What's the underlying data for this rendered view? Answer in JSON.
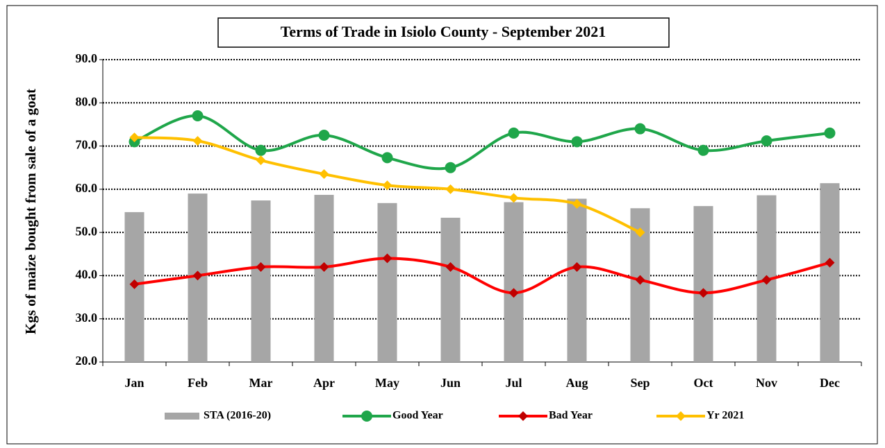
{
  "chart_data": {
    "type": "bar_line",
    "title": "Terms of Trade in Isiolo County - September 2021",
    "y_label": "Kgs of maize bought from sale of a goat",
    "categories": [
      "Jan",
      "Feb",
      "Mar",
      "Apr",
      "May",
      "Jun",
      "Jul",
      "Aug",
      "Sep",
      "Oct",
      "Nov",
      "Dec"
    ],
    "series": [
      {
        "name": "STA (2016-20)",
        "type": "bar",
        "color": "#a6a6a6",
        "values": [
          54.7,
          59,
          57.4,
          58.7,
          56.8,
          53.4,
          57,
          57.8,
          55.6,
          56.1,
          58.6,
          61.4
        ]
      },
      {
        "name": "Good Year",
        "type": "line",
        "marker": "circle",
        "color": "#1fa64a",
        "values": [
          71,
          77,
          69,
          72.5,
          67.3,
          65,
          73,
          71,
          74,
          69,
          71.2,
          73
        ]
      },
      {
        "name": "Bad Year",
        "type": "line",
        "marker": "diamond",
        "color": "#ff0000",
        "values": [
          38,
          40,
          42,
          42,
          44,
          42,
          36,
          42,
          39,
          36,
          39,
          43
        ]
      },
      {
        "name": "Yr 2021",
        "type": "line",
        "marker": "diamond",
        "color": "#ffc000",
        "values": [
          72,
          71.2,
          66.7,
          63.5,
          60.9,
          60,
          58,
          56.6,
          50,
          null,
          null,
          null
        ]
      }
    ],
    "ylim": [
      20,
      90
    ],
    "yticks": [
      {
        "value": 20,
        "label": "20.0"
      },
      {
        "value": 30,
        "label": "30.0"
      },
      {
        "value": 40,
        "label": "40.0"
      },
      {
        "value": 50,
        "label": "50.0"
      },
      {
        "value": 60,
        "label": "60.0"
      },
      {
        "value": 70,
        "label": "70.0"
      },
      {
        "value": 80,
        "label": "80.0"
      },
      {
        "value": 90,
        "label": "90.0"
      }
    ],
    "grid": true,
    "legend": "bottom"
  }
}
